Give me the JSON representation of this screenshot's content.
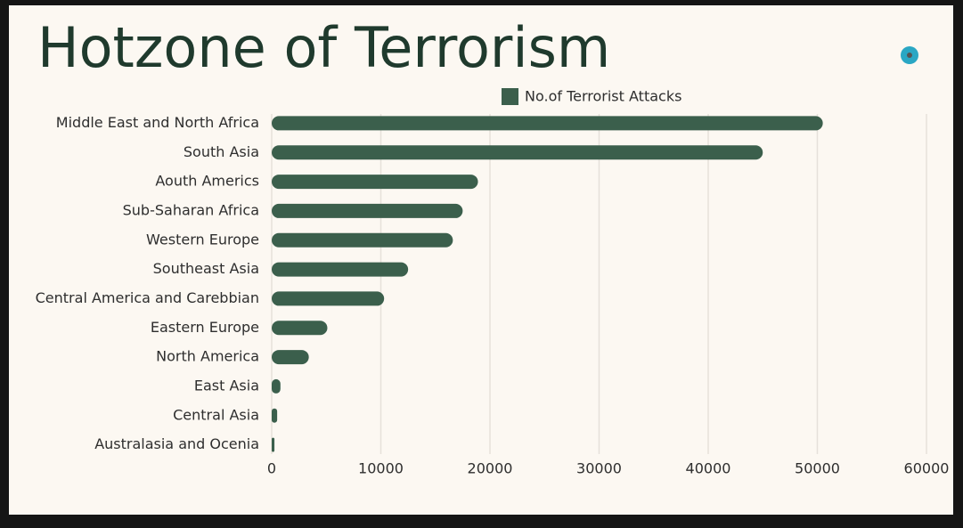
{
  "chart_data": {
    "type": "bar",
    "orientation": "horizontal",
    "title": "Hotzone of Terrorism",
    "categories": [
      "Middle East and North Africa",
      "South Asia",
      "Aouth Americs",
      "Sub-Saharan Africa",
      "Western Europe",
      "Southeast Asia",
      "Central America and Carebbian",
      "Eastern Europe",
      "North America",
      "East Asia",
      "Central Asia",
      "Australasia and Ocenia"
    ],
    "series": [
      {
        "name": "No.of Terrorist Attacks",
        "color": "#3b5f4c",
        "values": [
          50500,
          45000,
          18900,
          17500,
          16600,
          12500,
          10300,
          5100,
          3400,
          800,
          500,
          250
        ]
      }
    ],
    "xlim": [
      0,
      60000
    ],
    "xticks": [
      0,
      10000,
      20000,
      30000,
      40000,
      50000,
      60000
    ],
    "grid": true,
    "legend": "top"
  }
}
